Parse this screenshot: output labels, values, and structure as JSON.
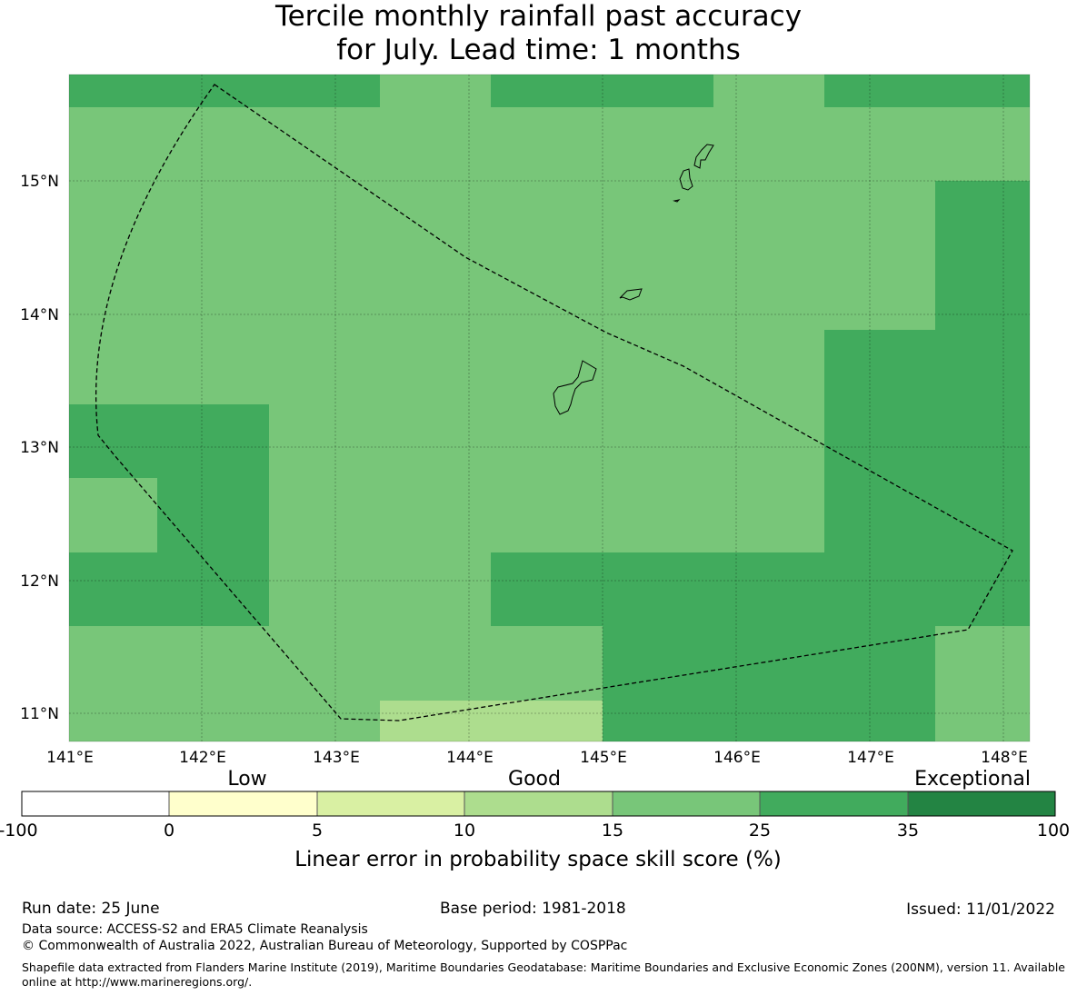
{
  "title_line1": "Tercile monthly rainfall past accuracy",
  "title_line2": "for July. Lead time: 1 months",
  "map": {
    "lon_range": [
      141.0,
      148.2
    ],
    "lat_range": [
      10.8,
      15.8
    ],
    "x_ticks": [
      "141°E",
      "142°E",
      "143°E",
      "144°E",
      "145°E",
      "146°E",
      "147°E",
      "148°E"
    ],
    "y_ticks": [
      "11°N",
      "12°N",
      "13°N",
      "14°N",
      "15°N"
    ],
    "colors": {
      "c15_25": "#78c679",
      "c25_35": "#41ab5d",
      "c10_15": "#addd8e"
    }
  },
  "colorbar": {
    "word_low": "Low",
    "word_good": "Good",
    "word_exceptional": "Exceptional",
    "ticks": [
      "-100",
      "0",
      "5",
      "10",
      "15",
      "25",
      "35",
      "100"
    ],
    "colors": [
      "#ffffff",
      "#ffffcc",
      "#d9f0a3",
      "#addd8e",
      "#78c679",
      "#41ab5d",
      "#238443"
    ],
    "label": "Linear error in probability space skill score (%)"
  },
  "footer": {
    "run_date": "Run date: 25 June",
    "base_period": "Base period: 1981-2018",
    "issued": "Issued: 11/01/2022",
    "data_source": "Data source: ACCESS-S2 and ERA5 Climate Reanalysis",
    "copyright": "© Commonwealth of Australia 2022, Australian Bureau of Meteorology, Supported by COSPPac",
    "shapefile": "Shapefile data extracted from Flanders Marine Institute (2019), Maritime Boundaries Geodatabase: Maritime Boundaries and Exclusive Economic Zones (200NM), version 11. Available online at http://www.marineregions.org/."
  }
}
